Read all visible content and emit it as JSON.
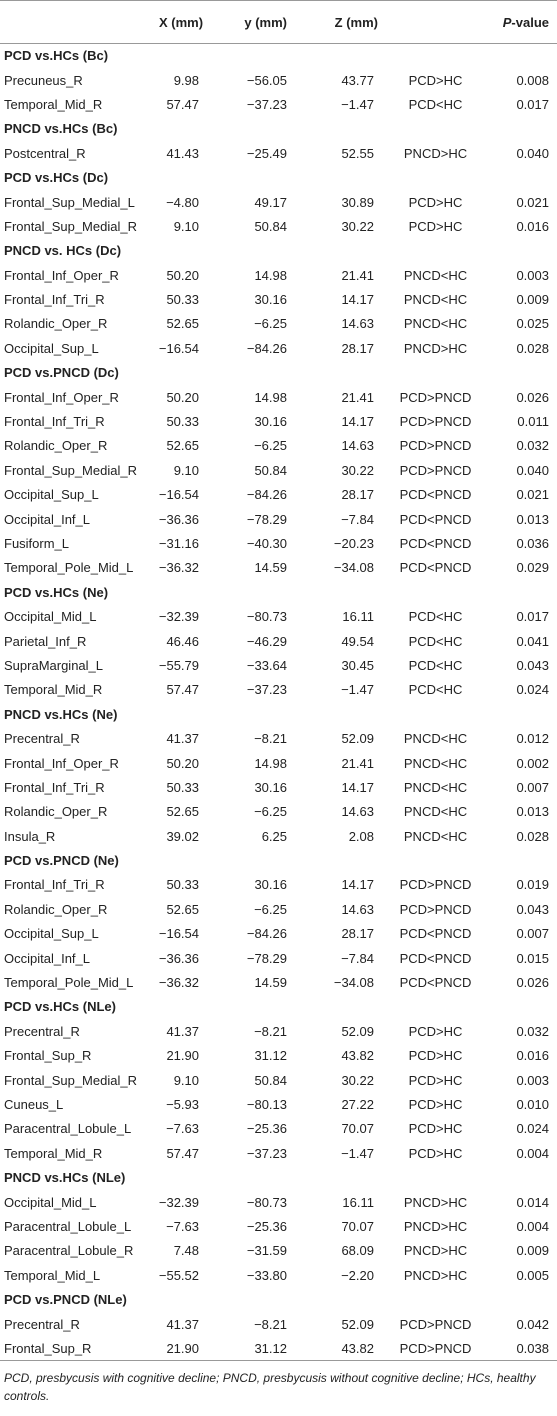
{
  "table": {
    "columns": [
      "X (mm)",
      "y (mm)",
      "Z (mm)",
      "P-value"
    ],
    "sections": [
      {
        "title": "PCD vs.HCs (Bc)",
        "rows": [
          [
            "Precuneus_R",
            "9.98",
            "−56.05",
            "43.77",
            "PCD>HC",
            "0.008"
          ],
          [
            "Temporal_Mid_R",
            "57.47",
            "−37.23",
            "−1.47",
            "PCD<HC",
            "0.017"
          ]
        ]
      },
      {
        "title": "PNCD vs.HCs (Bc)",
        "rows": [
          [
            "Postcentral_R",
            "41.43",
            "−25.49",
            "52.55",
            "PNCD>HC",
            "0.040"
          ]
        ]
      },
      {
        "title": "PCD vs.HCs (Dc)",
        "rows": [
          [
            "Frontal_Sup_Medial_L",
            "−4.80",
            "49.17",
            "30.89",
            "PCD>HC",
            "0.021"
          ],
          [
            "Frontal_Sup_Medial_R",
            "9.10",
            "50.84",
            "30.22",
            "PCD>HC",
            "0.016"
          ]
        ]
      },
      {
        "title": "PNCD vs. HCs (Dc)",
        "rows": [
          [
            "Frontal_Inf_Oper_R",
            "50.20",
            "14.98",
            "21.41",
            "PNCD<HC",
            "0.003"
          ],
          [
            "Frontal_Inf_Tri_R",
            "50.33",
            "30.16",
            "14.17",
            "PNCD<HC",
            "0.009"
          ],
          [
            "Rolandic_Oper_R",
            "52.65",
            "−6.25",
            "14.63",
            "PNCD<HC",
            "0.025"
          ],
          [
            "Occipital_Sup_L",
            "−16.54",
            "−84.26",
            "28.17",
            "PNCD>HC",
            "0.028"
          ]
        ]
      },
      {
        "title": "PCD vs.PNCD (Dc)",
        "rows": [
          [
            "Frontal_Inf_Oper_R",
            "50.20",
            "14.98",
            "21.41",
            "PCD>PNCD",
            "0.026"
          ],
          [
            "Frontal_Inf_Tri_R",
            "50.33",
            "30.16",
            "14.17",
            "PCD>PNCD",
            "0.011"
          ],
          [
            "Rolandic_Oper_R",
            "52.65",
            "−6.25",
            "14.63",
            "PCD>PNCD",
            "0.032"
          ],
          [
            "Frontal_Sup_Medial_R",
            "9.10",
            "50.84",
            "30.22",
            "PCD>PNCD",
            "0.040"
          ],
          [
            "Occipital_Sup_L",
            "−16.54",
            "−84.26",
            "28.17",
            "PCD<PNCD",
            "0.021"
          ],
          [
            "Occipital_Inf_L",
            "−36.36",
            "−78.29",
            "−7.84",
            "PCD<PNCD",
            "0.013"
          ],
          [
            "Fusiform_L",
            "−31.16",
            "−40.30",
            "−20.23",
            "PCD<PNCD",
            "0.036"
          ],
          [
            "Temporal_Pole_Mid_L",
            "−36.32",
            "14.59",
            "−34.08",
            "PCD<PNCD",
            "0.029"
          ]
        ]
      },
      {
        "title": "PCD vs.HCs (Ne)",
        "rows": [
          [
            "Occipital_Mid_L",
            "−32.39",
            "−80.73",
            "16.11",
            "PCD<HC",
            "0.017"
          ],
          [
            "Parietal_Inf_R",
            "46.46",
            "−46.29",
            "49.54",
            "PCD<HC",
            "0.041"
          ],
          [
            "SupraMarginal_L",
            "−55.79",
            "−33.64",
            "30.45",
            "PCD<HC",
            "0.043"
          ],
          [
            "Temporal_Mid_R",
            "57.47",
            "−37.23",
            "−1.47",
            "PCD<HC",
            "0.024"
          ]
        ]
      },
      {
        "title": "PNCD vs.HCs (Ne)",
        "rows": [
          [
            "Precentral_R",
            "41.37",
            "−8.21",
            "52.09",
            "PNCD<HC",
            "0.012"
          ],
          [
            "Frontal_Inf_Oper_R",
            "50.20",
            "14.98",
            "21.41",
            "PNCD<HC",
            "0.002"
          ],
          [
            "Frontal_Inf_Tri_R",
            "50.33",
            "30.16",
            "14.17",
            "PNCD<HC",
            "0.007"
          ],
          [
            "Rolandic_Oper_R",
            "52.65",
            "−6.25",
            "14.63",
            "PNCD<HC",
            "0.013"
          ],
          [
            "Insula_R",
            "39.02",
            "6.25",
            "2.08",
            "PNCD<HC",
            "0.028"
          ]
        ]
      },
      {
        "title": "PCD vs.PNCD (Ne)",
        "rows": [
          [
            "Frontal_Inf_Tri_R",
            "50.33",
            "30.16",
            "14.17",
            "PCD>PNCD",
            "0.019"
          ],
          [
            "Rolandic_Oper_R",
            "52.65",
            "−6.25",
            "14.63",
            "PCD>PNCD",
            "0.043"
          ],
          [
            "Occipital_Sup_L",
            "−16.54",
            "−84.26",
            "28.17",
            "PCD<PNCD",
            "0.007"
          ],
          [
            "Occipital_Inf_L",
            "−36.36",
            "−78.29",
            "−7.84",
            "PCD<PNCD",
            "0.015"
          ],
          [
            "Temporal_Pole_Mid_L",
            "−36.32",
            "14.59",
            "−34.08",
            "PCD<PNCD",
            "0.026"
          ]
        ]
      },
      {
        "title": "PCD vs.HCs (NLe)",
        "rows": [
          [
            "Precentral_R",
            "41.37",
            "−8.21",
            "52.09",
            "PCD>HC",
            "0.032"
          ],
          [
            "Frontal_Sup_R",
            "21.90",
            "31.12",
            "43.82",
            "PCD>HC",
            "0.016"
          ],
          [
            "Frontal_Sup_Medial_R",
            "9.10",
            "50.84",
            "30.22",
            "PCD>HC",
            "0.003"
          ],
          [
            "Cuneus_L",
            "−5.93",
            "−80.13",
            "27.22",
            "PCD>HC",
            "0.010"
          ],
          [
            "Paracentral_Lobule_L",
            "−7.63",
            "−25.36",
            "70.07",
            "PCD>HC",
            "0.024"
          ],
          [
            "Temporal_Mid_R",
            "57.47",
            "−37.23",
            "−1.47",
            "PCD>HC",
            "0.004"
          ]
        ]
      },
      {
        "title": "PNCD vs.HCs (NLe)",
        "rows": [
          [
            "Occipital_Mid_L",
            "−32.39",
            "−80.73",
            "16.11",
            "PNCD>HC",
            "0.014"
          ],
          [
            "Paracentral_Lobule_L",
            "−7.63",
            "−25.36",
            "70.07",
            "PNCD>HC",
            "0.004"
          ],
          [
            "Paracentral_Lobule_R",
            "7.48",
            "−31.59",
            "68.09",
            "PNCD>HC",
            "0.009"
          ],
          [
            "Temporal_Mid_L",
            "−55.52",
            "−33.80",
            "−2.20",
            "PNCD>HC",
            "0.005"
          ]
        ]
      },
      {
        "title": "PCD vs.PNCD (NLe)",
        "rows": [
          [
            "Precentral_R",
            "41.37",
            "−8.21",
            "52.09",
            "PCD>PNCD",
            "0.042"
          ],
          [
            "Frontal_Sup_R",
            "21.90",
            "31.12",
            "43.82",
            "PCD>PNCD",
            "0.038"
          ]
        ]
      }
    ]
  },
  "footnote": "PCD, presbycusis with cognitive decline; PNCD, presbycusis without cognitive decline; HCs, healthy controls."
}
